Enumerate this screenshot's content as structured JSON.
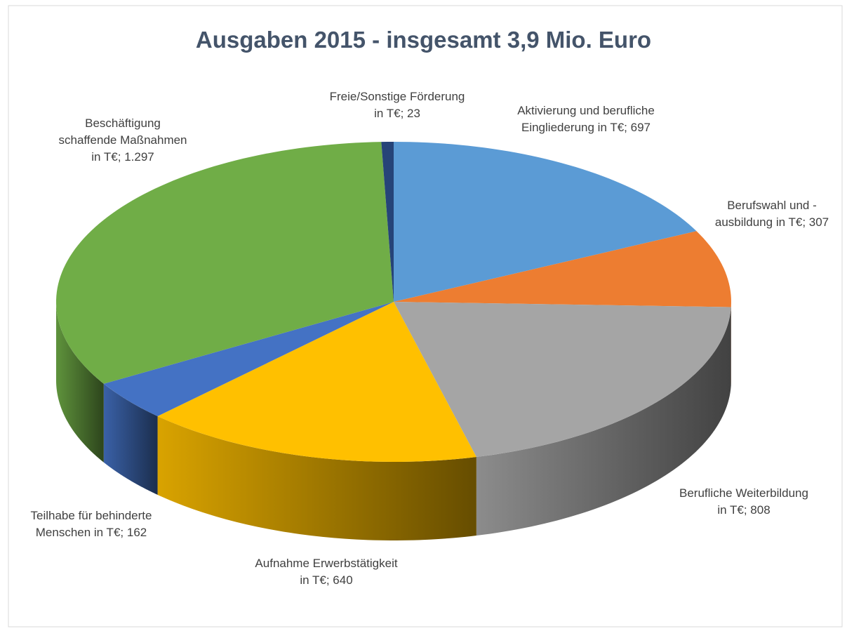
{
  "chart_data": {
    "type": "pie3d",
    "title": "Ausgaben 2015 - insgesamt 3,9 Mio. Euro",
    "categories": [
      "Aktivierung und berufliche Eingliederung in T€",
      "Berufswahl und -ausbildung in T€",
      "Berufliche Weiterbildung in T€",
      "Aufnahme Erwerbstätigkeit in T€",
      "Teilhabe für behinderte Menschen in T€",
      "Beschäftigung schaffende Maßnahmen in T€",
      "Freie/Sonstige Förderung in T€"
    ],
    "values": [
      697,
      307,
      808,
      640,
      162,
      1297,
      23
    ],
    "value_labels": [
      "697",
      "307",
      "808",
      "640",
      "162",
      "1.297",
      "23"
    ],
    "label_separator": "; ",
    "colors": [
      "#5b9bd5",
      "#ed7d31",
      "#a5a5a5",
      "#ffc000",
      "#4472c4",
      "#70ad47",
      "#264478"
    ]
  }
}
